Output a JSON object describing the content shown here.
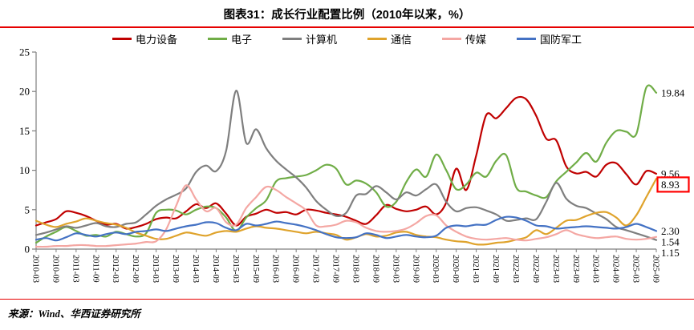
{
  "title": "图表31：成长行业配置比例（2010年以来，%）",
  "source": "来源：Wind、华西证券研究所",
  "accent_color": "#e60000",
  "chart_data": {
    "type": "line",
    "title": "成长行业配置比例（2010年以来，%）",
    "grid": false,
    "legend_position": "top",
    "ylim": [
      0,
      25
    ],
    "yticks": [
      0,
      5,
      10,
      15,
      20,
      25
    ],
    "x_label_every": 2,
    "categories": [
      "2010-03",
      "2010-06",
      "2010-09",
      "2010-12",
      "2011-03",
      "2011-06",
      "2011-09",
      "2011-12",
      "2012-03",
      "2012-06",
      "2012-09",
      "2012-12",
      "2013-03",
      "2013-06",
      "2013-09",
      "2013-12",
      "2014-03",
      "2014-06",
      "2014-09",
      "2014-12",
      "2015-03",
      "2015-06",
      "2015-09",
      "2015-12",
      "2016-03",
      "2016-06",
      "2016-09",
      "2016-12",
      "2017-03",
      "2017-06",
      "2017-09",
      "2017-12",
      "2018-03",
      "2018-06",
      "2018-09",
      "2018-12",
      "2019-03",
      "2019-06",
      "2019-09",
      "2019-12",
      "2020-03",
      "2020-06",
      "2020-09",
      "2020-12",
      "2021-03",
      "2021-06",
      "2021-09",
      "2021-12",
      "2022-03",
      "2022-06",
      "2022-09",
      "2022-12",
      "2023-03",
      "2023-06",
      "2023-09",
      "2023-12",
      "2024-03",
      "2024-06",
      "2024-09",
      "2024-12",
      "2025-03",
      "2025-06",
      "2025-09"
    ],
    "series": [
      {
        "name": "电力设备",
        "color": "#c00000",
        "values": [
          3.0,
          3.4,
          3.8,
          4.8,
          4.6,
          4.2,
          3.6,
          3.1,
          3.2,
          2.6,
          2.8,
          3.2,
          3.8,
          4.0,
          3.9,
          4.8,
          5.7,
          5.2,
          5.8,
          4.5,
          3.0,
          4.1,
          4.5,
          5.0,
          4.6,
          4.7,
          4.4,
          5.0,
          4.9,
          4.6,
          4.4,
          4.1,
          3.6,
          3.2,
          4.3,
          5.6,
          5.1,
          4.8,
          5.0,
          5.4,
          4.4,
          5.9,
          10.2,
          7.5,
          11.9,
          17.0,
          16.6,
          17.9,
          19.2,
          19.0,
          16.9,
          14.0,
          13.8,
          10.5,
          9.6,
          9.8,
          9.2,
          10.7,
          10.9,
          9.5,
          8.2,
          9.9,
          9.56
        ]
      },
      {
        "name": "电子",
        "color": "#70ad47",
        "values": [
          0.8,
          1.6,
          2.2,
          2.8,
          2.3,
          1.7,
          1.8,
          1.6,
          2.2,
          1.9,
          1.6,
          2.0,
          4.6,
          5.0,
          4.9,
          4.4,
          5.0,
          5.4,
          5.2,
          4.0,
          2.3,
          4.0,
          5.2,
          6.2,
          8.6,
          9.0,
          9.2,
          9.4,
          10.0,
          10.7,
          10.2,
          8.2,
          8.7,
          8.3,
          7.2,
          5.4,
          6.0,
          8.5,
          10.1,
          9.2,
          12.0,
          10.0,
          7.6,
          8.2,
          9.7,
          9.2,
          11.2,
          11.9,
          7.8,
          7.3,
          6.8,
          6.6,
          8.6,
          9.8,
          11.0,
          12.2,
          11.1,
          13.5,
          15.0,
          14.9,
          14.6,
          20.5,
          19.84
        ]
      },
      {
        "name": "计算机",
        "color": "#7f7f7f",
        "values": [
          1.8,
          2.1,
          2.5,
          2.9,
          2.7,
          3.0,
          3.3,
          2.9,
          2.8,
          3.2,
          3.4,
          4.4,
          5.5,
          6.3,
          6.9,
          7.7,
          9.8,
          10.6,
          9.9,
          12.5,
          20.1,
          13.5,
          15.2,
          12.8,
          11.2,
          10.1,
          9.1,
          7.8,
          6.1,
          5.0,
          4.2,
          4.6,
          6.8,
          7.0,
          8.0,
          7.2,
          6.3,
          7.2,
          6.8,
          7.6,
          8.2,
          6.0,
          4.8,
          5.2,
          5.3,
          4.9,
          4.4,
          3.6,
          3.7,
          3.9,
          3.8,
          6.0,
          8.4,
          6.4,
          5.5,
          5.2,
          4.5,
          3.8,
          2.8,
          2.4,
          2.0,
          1.6,
          1.15
        ]
      },
      {
        "name": "通信",
        "color": "#dfa32c",
        "values": [
          3.6,
          3.1,
          2.8,
          3.2,
          3.5,
          3.9,
          3.6,
          3.3,
          3.1,
          2.7,
          2.1,
          1.7,
          1.3,
          1.3,
          1.7,
          2.1,
          1.9,
          1.7,
          2.1,
          2.3,
          2.2,
          2.6,
          2.9,
          2.7,
          2.6,
          2.4,
          2.2,
          2.0,
          2.2,
          2.0,
          1.8,
          1.2,
          1.5,
          1.9,
          1.6,
          1.7,
          2.1,
          2.2,
          1.8,
          1.6,
          1.5,
          1.2,
          1.0,
          0.9,
          0.6,
          0.6,
          0.8,
          0.9,
          1.2,
          1.5,
          2.4,
          1.9,
          2.7,
          3.6,
          3.7,
          4.2,
          4.6,
          4.7,
          4.0,
          3.0,
          4.3,
          6.6,
          8.93
        ]
      },
      {
        "name": "传媒",
        "color": "#f4a7a3",
        "values": [
          0.3,
          0.3,
          0.4,
          0.4,
          0.5,
          0.5,
          0.4,
          0.4,
          0.5,
          0.6,
          0.7,
          0.9,
          1.0,
          2.5,
          5.5,
          8.1,
          6.3,
          4.8,
          5.2,
          3.4,
          3.1,
          5.2,
          6.6,
          7.9,
          7.5,
          6.6,
          5.8,
          4.9,
          3.0,
          2.9,
          3.1,
          3.6,
          3.4,
          2.7,
          2.3,
          2.2,
          2.3,
          2.6,
          3.3,
          4.2,
          4.3,
          3.0,
          2.2,
          1.6,
          1.3,
          1.2,
          1.3,
          1.4,
          1.2,
          1.1,
          1.3,
          1.5,
          1.9,
          2.4,
          1.9,
          1.6,
          1.4,
          1.5,
          1.6,
          1.3,
          1.2,
          1.3,
          1.54
        ]
      },
      {
        "name": "国防军工",
        "color": "#4472c4",
        "values": [
          1.2,
          1.4,
          1.1,
          1.5,
          2.0,
          1.8,
          1.6,
          1.9,
          2.1,
          1.9,
          2.2,
          2.3,
          2.5,
          2.3,
          2.6,
          2.9,
          3.1,
          3.4,
          3.3,
          2.7,
          2.4,
          3.2,
          3.0,
          3.2,
          3.5,
          3.3,
          3.1,
          2.8,
          2.4,
          1.9,
          1.5,
          1.4,
          1.5,
          2.0,
          1.8,
          1.4,
          1.6,
          1.8,
          1.6,
          1.5,
          1.7,
          2.7,
          3.0,
          2.9,
          3.1,
          3.1,
          3.7,
          4.1,
          4.0,
          3.6,
          3.0,
          2.9,
          2.6,
          2.7,
          2.8,
          2.9,
          2.8,
          2.7,
          2.6,
          2.8,
          3.2,
          2.8,
          2.3
        ]
      }
    ],
    "end_labels": [
      {
        "series": "电子",
        "text": "19.84",
        "highlighted": false
      },
      {
        "series": "电力设备",
        "text": "9.56",
        "highlighted": false
      },
      {
        "series": "通信",
        "text": "8.93",
        "highlighted": true
      },
      {
        "series": "国防军工",
        "text": "2.30",
        "highlighted": false
      },
      {
        "series": "传媒",
        "text": "1.54",
        "highlighted": false
      },
      {
        "series": "计算机",
        "text": "1.15",
        "highlighted": false
      }
    ],
    "highlight_box_color": "#ff0000"
  }
}
